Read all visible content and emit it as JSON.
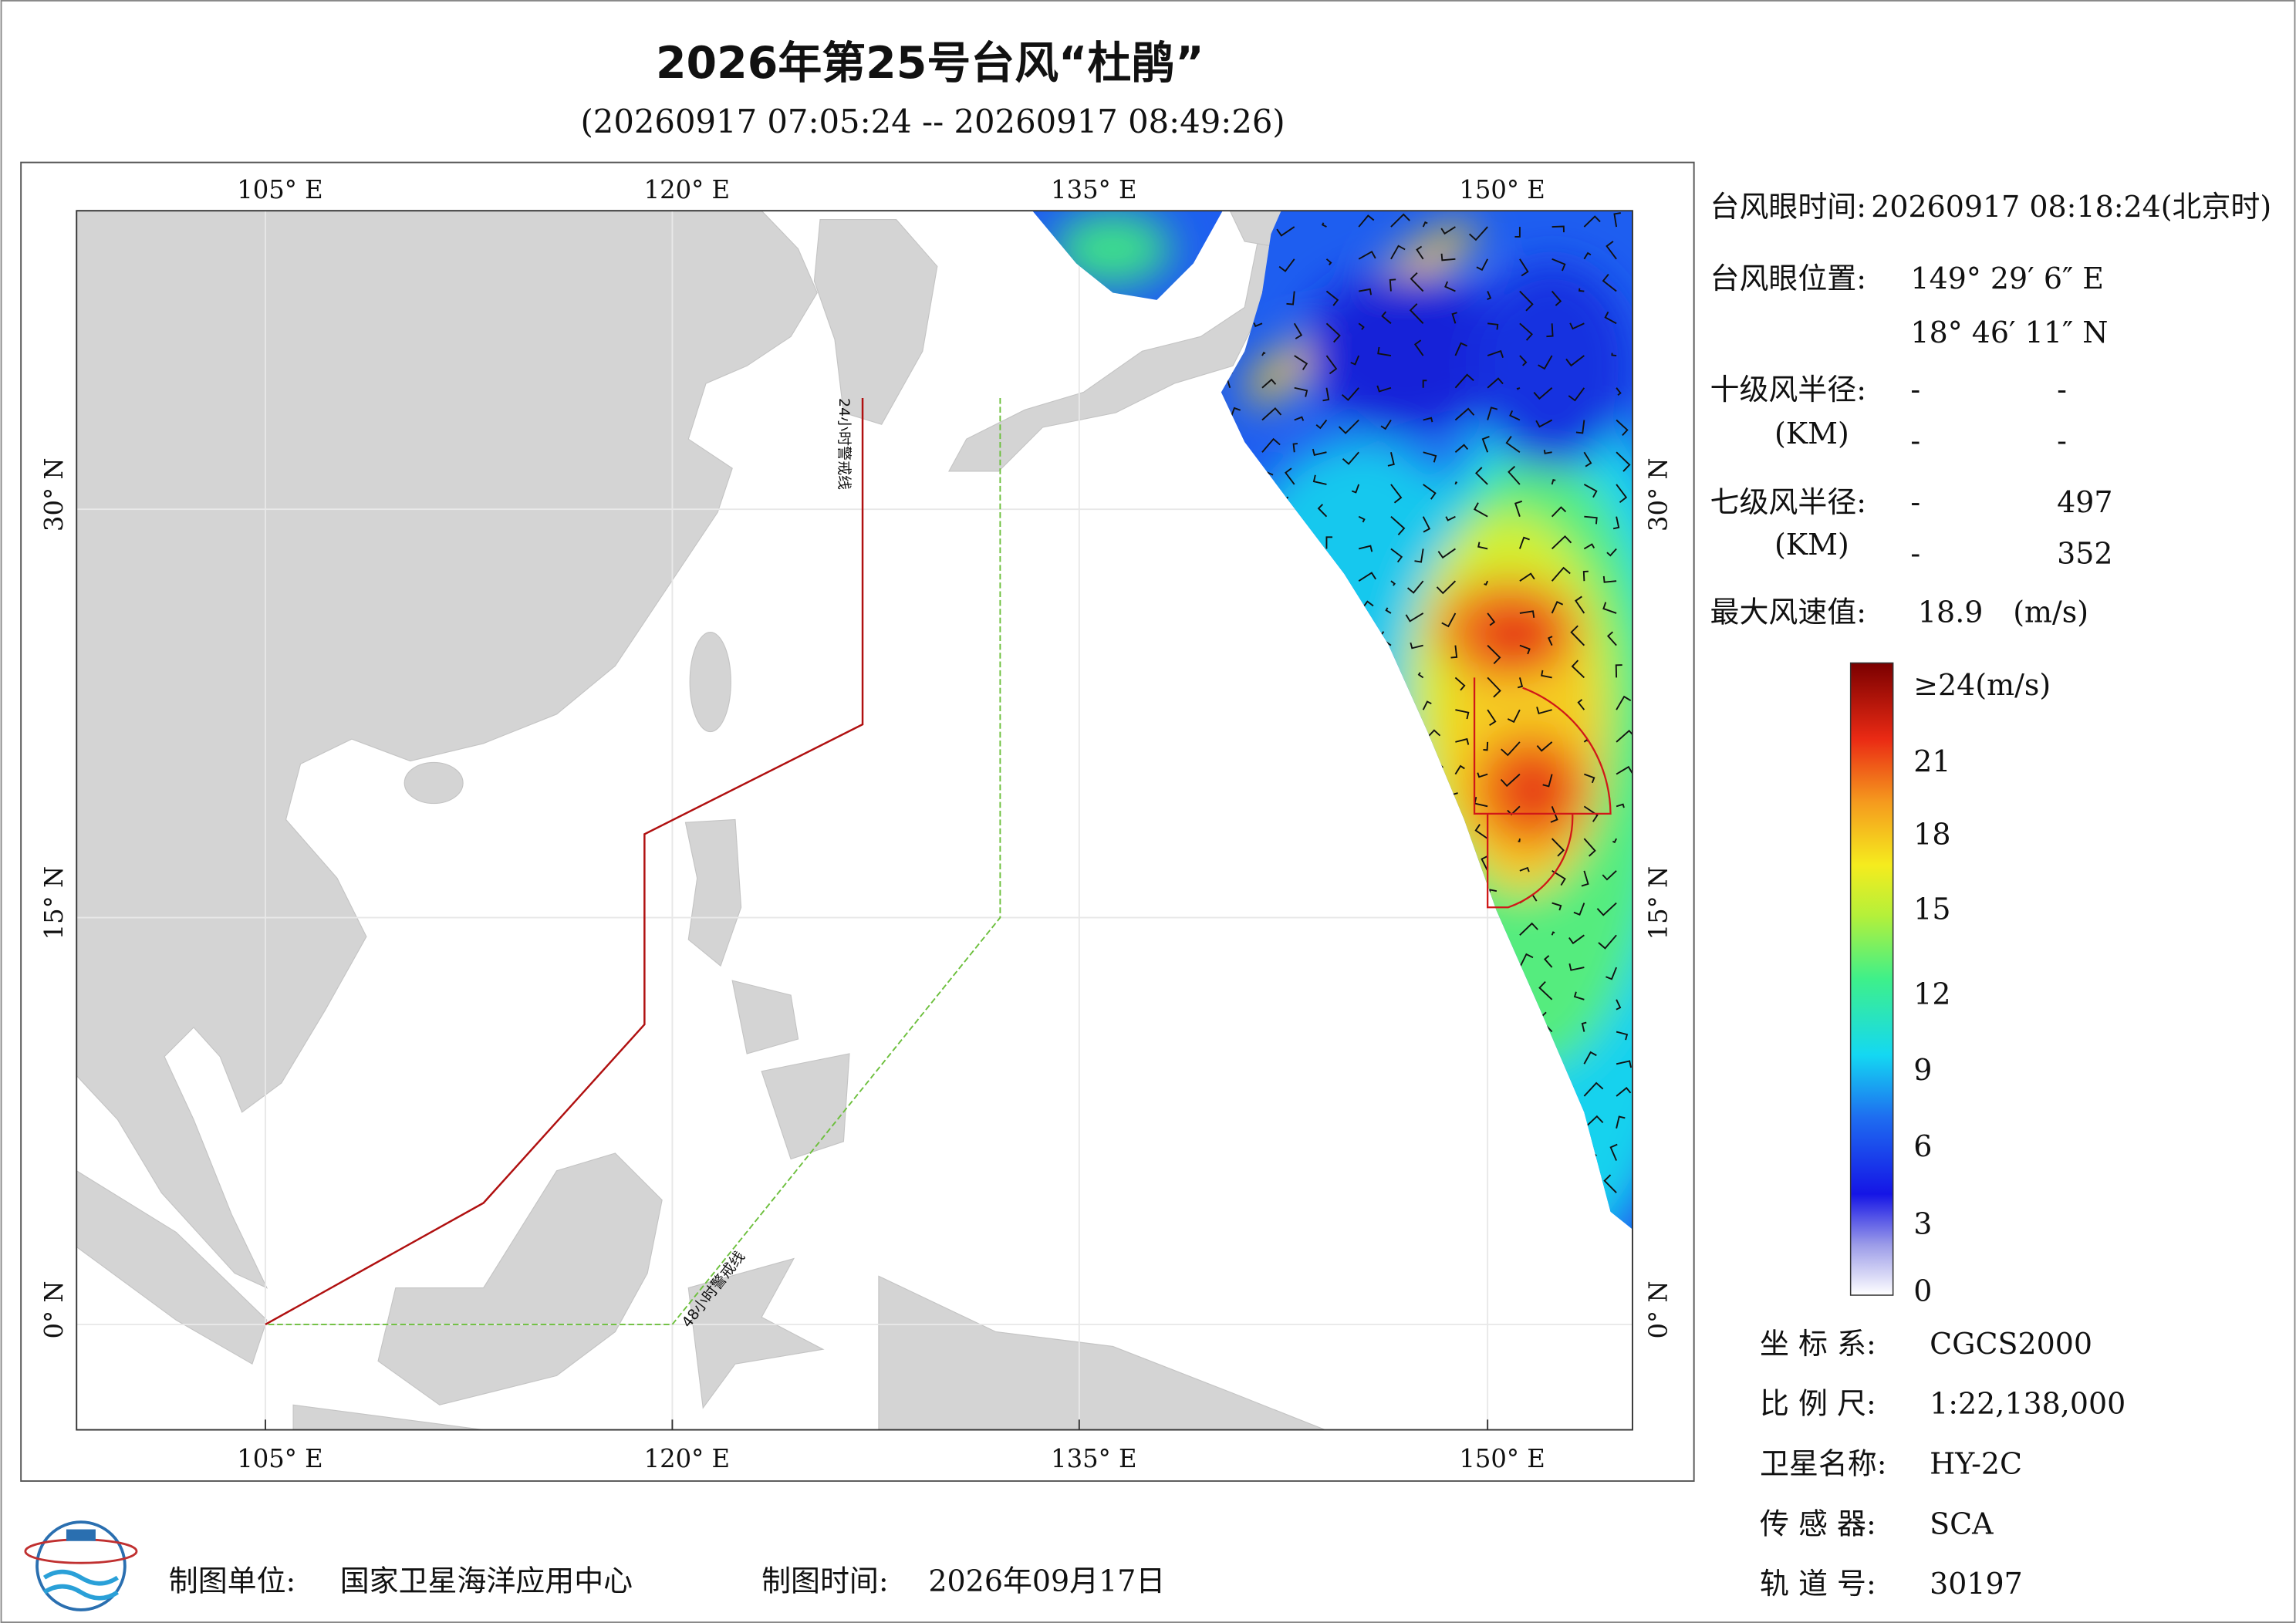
{
  "header": {
    "title": "2026年第25号台风“杜鹃”",
    "subtitle": "(20260917 07:05:24 -- 20260917 08:49:26)"
  },
  "map": {
    "lon_labels": [
      "105° E",
      "120° E",
      "135° E",
      "150° E"
    ],
    "lat_labels": [
      "30° N",
      "15° N",
      "0° N"
    ],
    "warning_24h": "24小时警戒线",
    "warning_48h": "48小时警戒线"
  },
  "info": {
    "eye_time_label": "台风眼时间:",
    "eye_time": "20260917 08:18:24(北京时)",
    "eye_pos_label": "台风眼位置:",
    "eye_lon": "149° 29′ 6″ E",
    "eye_lat": "18° 46′ 11″ N",
    "r10_label": "十级风半径:",
    "r10_unit": "(KM)",
    "r10_values": [
      "-",
      "-",
      "-",
      "-"
    ],
    "r7_label": "七级风半径:",
    "r7_unit": "(KM)",
    "r7_values": [
      "-",
      "497",
      "-",
      "352"
    ],
    "max_label": "最大风速值:",
    "max_value": "18.9",
    "max_unit": "(m/s)"
  },
  "colorbar": {
    "labels": [
      "≥24(m/s)",
      "21",
      "18",
      "15",
      "12",
      "9",
      "6",
      "3",
      "0"
    ]
  },
  "meta": [
    {
      "label": "坐 标 系:",
      "value": "CGCS2000"
    },
    {
      "label": "比 例 尺:",
      "value": "1:22,138,000"
    },
    {
      "label": "卫星名称:",
      "value": "HY-2C"
    },
    {
      "label": "传 感 器:",
      "value": "SCA"
    },
    {
      "label": "轨 道 号:",
      "value": "30197"
    }
  ],
  "footer": {
    "maker_label": "制图单位:",
    "maker": "国家卫星海洋应用中心",
    "time_label": "制图时间:",
    "time": "2026年09月17日"
  }
}
